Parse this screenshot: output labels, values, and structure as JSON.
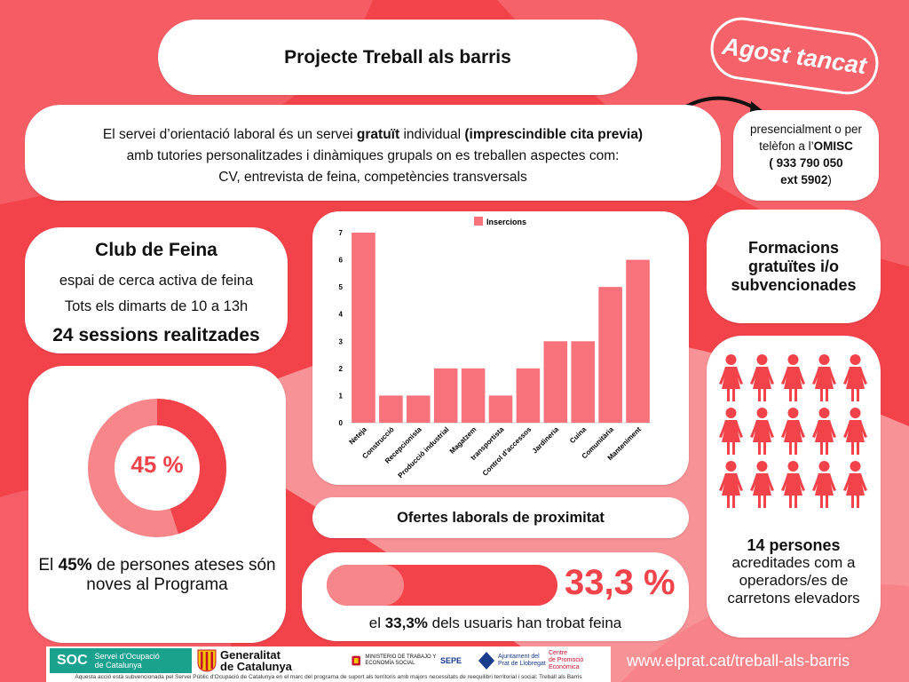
{
  "title": "Projecte Treball als barris",
  "badge": "Agost tancat",
  "intro": {
    "line1_a": "El servei d’orientació laboral és un servei ",
    "line1_bold": "gratuït",
    "line1_b": " individual ",
    "line1_bold2": "(imprescindible cita previa)",
    "line2": "amb tutories personalitzades i dinàmiques grupals on es treballen aspectes com:",
    "line3": "CV, entrevista de feina, competències transversals"
  },
  "omisc": {
    "line1": "presencialment o per",
    "line2_a": "telèfon a l’",
    "line2_bold": "OMISC",
    "line3": "( 933 790 050",
    "line4": "ext 5902",
    "line4_end": ")"
  },
  "club": {
    "title": "Club de Feina",
    "line1": "espai de cerca activa de feina",
    "line2": "Tots els dimarts de 10 a 13h",
    "sessions": "24 sessions realitzades"
  },
  "donut": {
    "value": 45,
    "label": "45 %",
    "caption_a": "El ",
    "caption_bold": "45%",
    "caption_b": " de persones ateses són noves al Programa"
  },
  "chart_data": {
    "type": "bar",
    "legend": [
      "Insercions"
    ],
    "legend_position": "top-center",
    "categories": [
      "Neteja",
      "Construcció",
      "Recepcionista",
      "Producció industrial",
      "Magatzem",
      "transportista",
      "Control d’accessos",
      "Jardineria",
      "Cuina",
      "Comunitària",
      "Manteniment"
    ],
    "series": [
      {
        "name": "Insercions",
        "values": [
          7,
          1,
          1,
          2,
          2,
          1,
          2,
          3,
          3,
          5,
          6
        ]
      }
    ],
    "yticks": [
      "0",
      "1",
      "2",
      "3",
      "4",
      "5",
      "6",
      "7"
    ],
    "ylim": [
      0,
      7
    ],
    "grid": false,
    "color": "#f7727a"
  },
  "offers": "Ofertes laborals de proximitat",
  "progress": {
    "value": 33.3,
    "label": "33,3 %",
    "caption_a": "el ",
    "caption_bold": "33,3%",
    "caption_b": " dels usuaris han trobat feina"
  },
  "formacions": {
    "line1": "Formacions",
    "line2": "gratuïtes i/o",
    "line3": "subvencionades"
  },
  "people": {
    "count": 14,
    "count_label": "14 persones",
    "text": "acreditades com a operadors/es de carretons elevadors"
  },
  "footer": {
    "soc_mark": "SOC",
    "soc_text1": "Servei d’Ocupació",
    "soc_text2": "de Catalunya",
    "gen_text1": "Generalitat",
    "gen_text2": "de Catalunya",
    "gov_text": "MINISTERIO DE TRABAJO Y ECONOMÍA SOCIAL",
    "sepe": "SEPE",
    "prat_text1": "Ajuntament del",
    "prat_text2": "Prat de Llobregat",
    "cpe_text1": "Centre",
    "cpe_text2": "de Promoció Econòmica",
    "note": "Aquesta acció està subvencionada pel Servei Públic d'Ocupació de Catalunya en el marc del programa de suport als territoris amb majors necessitats de reequilibri territorial i social: Treball als Barris",
    "url": "www.elprat.cat/treball-als-barris"
  },
  "colors": {
    "accent": "#f2434b",
    "accent_light": "#f7868a",
    "bar": "#f7727a"
  }
}
